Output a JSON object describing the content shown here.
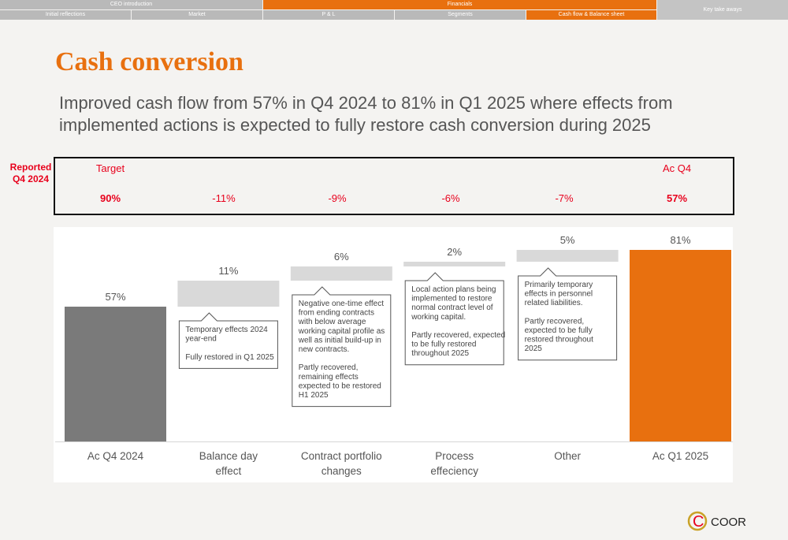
{
  "nav": {
    "top": [
      {
        "label": "CEO introduction",
        "active": false
      },
      {
        "label": "Financials",
        "active": true
      }
    ],
    "bottom": [
      {
        "label": "Initial reflections",
        "active": false
      },
      {
        "label": "Market",
        "active": false
      },
      {
        "label": "P & L",
        "active": false
      },
      {
        "label": "Segments",
        "active": false
      },
      {
        "label": "Cash flow & Balance sheet",
        "active": true
      }
    ],
    "key_take_aways": "Key take aways"
  },
  "title": "Cash conversion",
  "subtitle": "Improved cash flow from 57% in Q4 2024 to 81% in Q1 2025 where effects from implemented actions is expected to fully restore cash conversion during 2025",
  "reported_label": "Reported Q4 2024",
  "comparison": {
    "target_label": "Target",
    "ac_label": "Ac Q4",
    "values": [
      "90%",
      "-11%",
      "-9%",
      "-6%",
      "-7%",
      "57%"
    ]
  },
  "colors": {
    "accent": "#e8700f",
    "red": "#e8001c",
    "base_bar": "#7a7a7a",
    "delta_bar": "#d9d9d9"
  },
  "logo": {
    "text": "COOR"
  },
  "chart_data": {
    "type": "bar",
    "variant": "waterfall",
    "categories": [
      "Ac Q4 2024",
      "Balance day\neffect",
      "Contract portfolio\nchanges",
      "Process\neffeciency",
      "Other",
      "Ac Q1 2025"
    ],
    "values": [
      57,
      11,
      6,
      2,
      5,
      81
    ],
    "kinds": [
      "total",
      "delta",
      "delta",
      "delta",
      "delta",
      "total"
    ],
    "data_labels": [
      "57%",
      "11%",
      "6%",
      "2%",
      "5%",
      "81%"
    ],
    "ylim": [
      0,
      100
    ],
    "grid": false,
    "legend": "none",
    "annotations": [
      null,
      "Temporary effects 2024\nyear-end\n\nFully restored in Q1 2025",
      "Negative one-time effect\nfrom ending contracts\nwith below average\nworking capital profile as\nwell as initial build-up in\nnew contracts.\n\nPartly recovered,\nremaining effects\nexpected to be restored\nH1 2025",
      "Local action plans being\nimplemented to restore\nnormal contract level of\nworking capital.\n\nPartly recovered, expected\nto be fully restored\nthroughout 2025",
      "Primarily temporary\neffects in personnel\nrelated liabilities.\n\nPartly recovered,\nexpected to be fully\nrestored throughout\n2025",
      null
    ]
  }
}
